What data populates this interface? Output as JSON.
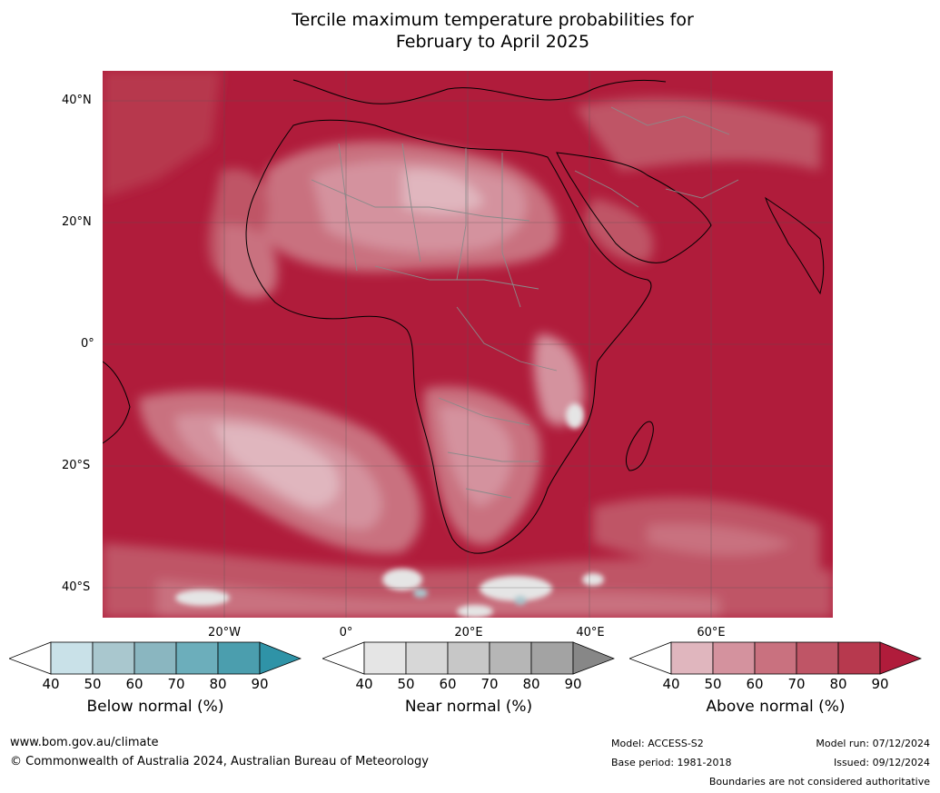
{
  "title_line1": "Tercile maximum temperature probabilities for",
  "title_line2": "February to April 2025",
  "lat_labels": [
    "40°N",
    "20°N",
    "0°",
    "20°S",
    "40°S"
  ],
  "lon_labels": [
    "20°W",
    "0°",
    "20°E",
    "40°E",
    "60°E"
  ],
  "colors": {
    "land_border": "#000000",
    "country_border": "#8a8a8a",
    "gridline": "#555555",
    "above": [
      "#ffffff",
      "#e0b6be",
      "#d4929e",
      "#c9717f",
      "#bf5566",
      "#b7394e",
      "#b01c3b"
    ],
    "near": [
      "#ffffff",
      "#e5e5e5",
      "#d7d7d7",
      "#c7c7c7",
      "#b6b6b6",
      "#a3a3a3",
      "#878787"
    ],
    "below": [
      "#ffffff",
      "#c9e1e8",
      "#a9c7ce",
      "#8ab6c0",
      "#6caebb",
      "#4b9eae",
      "#2f93a7"
    ]
  },
  "colorbars": [
    {
      "id": "below",
      "label": "Below normal (%)",
      "ticks": [
        "40",
        "50",
        "60",
        "70",
        "80",
        "90"
      ]
    },
    {
      "id": "near",
      "label": "Near normal (%)",
      "ticks": [
        "40",
        "50",
        "60",
        "70",
        "80",
        "90"
      ]
    },
    {
      "id": "above",
      "label": "Above normal (%)",
      "ticks": [
        "40",
        "50",
        "60",
        "70",
        "80",
        "90"
      ]
    }
  ],
  "footer": {
    "website": "www.bom.gov.au/climate",
    "copyright": "© Commonwealth of Australia 2024, Australian Bureau of Meteorology",
    "model": "Model: ACCESS-S2",
    "base_period": "Base period: 1981-2018",
    "model_run": "Model run: 07/12/2024",
    "issued": "Issued: 09/12/2024",
    "disclaimer": "Boundaries are not considered authoritative"
  }
}
